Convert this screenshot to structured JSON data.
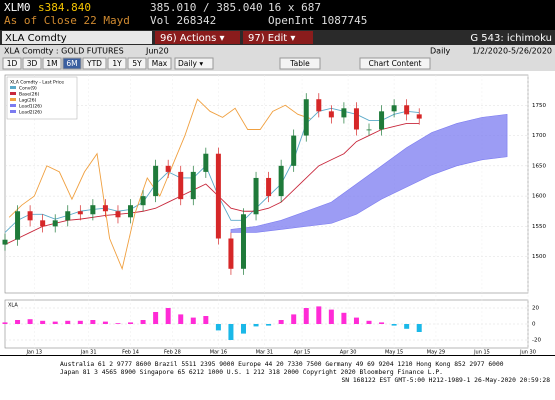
{
  "header": {
    "ticker": "XLM0",
    "last": "s384.840",
    "bidask": "385.010 / 385.040",
    "size": "16 x 687",
    "asof": "As of Close 22 Mayd",
    "vol": "Vol 268342",
    "openint": "OpenInt 1087745"
  },
  "toolbar": {
    "security": "XLA Comdty",
    "actions": "96) Actions ▾",
    "edit": "97) Edit ▾",
    "function": "G 543: ichimoku"
  },
  "info": {
    "name": "XLA Comdty : GOLD FUTURES",
    "contract": "Jun20",
    "period": "Daily",
    "range": "1/2/2020-5/26/2020"
  },
  "buttons": {
    "ranges": [
      "1D",
      "3D",
      "1M",
      "6M",
      "YTD",
      "1Y",
      "5Y",
      "Max"
    ],
    "selected": "6M",
    "period_menu": "Daily ▾",
    "table": "Table",
    "content": "Chart Content"
  },
  "chart_data": {
    "type": "candlestick",
    "legend_title": "XLA Comdty - Last Price",
    "x": [
      0,
      3,
      6,
      9,
      12,
      15,
      18,
      21,
      24,
      27,
      30,
      33,
      36,
      39,
      42,
      45,
      48,
      51,
      54,
      57,
      60,
      63,
      66,
      69,
      72,
      75,
      78,
      81,
      84,
      87,
      90,
      93,
      96,
      99
    ],
    "open": [
      1520,
      1528,
      1575,
      1560,
      1550,
      1560,
      1575,
      1570,
      1585,
      1575,
      1565,
      1585,
      1600,
      1650,
      1640,
      1595,
      1640,
      1670,
      1530,
      1480,
      1570,
      1630,
      1600,
      1650,
      1700,
      1760,
      1740,
      1730,
      1745,
      1710,
      1710,
      1740,
      1750,
      1735
    ],
    "high": [
      1538,
      1585,
      1585,
      1570,
      1570,
      1585,
      1585,
      1595,
      1595,
      1585,
      1595,
      1610,
      1660,
      1660,
      1650,
      1650,
      1680,
      1680,
      1540,
      1580,
      1640,
      1640,
      1660,
      1710,
      1770,
      1770,
      1750,
      1755,
      1755,
      1720,
      1750,
      1760,
      1760,
      1745
    ],
    "low": [
      1510,
      1518,
      1550,
      1540,
      1540,
      1550,
      1560,
      1560,
      1565,
      1555,
      1555,
      1575,
      1590,
      1630,
      1585,
      1585,
      1630,
      1520,
      1470,
      1470,
      1560,
      1590,
      1590,
      1640,
      1690,
      1730,
      1720,
      1720,
      1700,
      1700,
      1700,
      1730,
      1725,
      1718
    ],
    "close": [
      1528,
      1575,
      1560,
      1550,
      1560,
      1575,
      1570,
      1585,
      1575,
      1565,
      1585,
      1600,
      1650,
      1640,
      1595,
      1640,
      1670,
      1530,
      1480,
      1570,
      1630,
      1600,
      1650,
      1700,
      1760,
      1740,
      1730,
      1745,
      1710,
      1710,
      1740,
      1750,
      1735,
      1728
    ],
    "up_color": "#1f7a3a",
    "down_color": "#d62728",
    "series": [
      {
        "name": "Conv(9)",
        "color": "#5aa9c8",
        "x": [
          0,
          3,
          6,
          9,
          12,
          15,
          18,
          21,
          24,
          27,
          30,
          33,
          36,
          39,
          42,
          45,
          48,
          51,
          54,
          57,
          60,
          63,
          66,
          69,
          72,
          75,
          78,
          81,
          84,
          87,
          90,
          93,
          96,
          99
        ],
        "values": [
          1540,
          1560,
          1570,
          1570,
          1562,
          1568,
          1575,
          1578,
          1580,
          1575,
          1578,
          1590,
          1620,
          1640,
          1630,
          1630,
          1650,
          1600,
          1560,
          1560,
          1580,
          1600,
          1620,
          1660,
          1720,
          1740,
          1745,
          1740,
          1735,
          1725,
          1725,
          1735,
          1740,
          1738
        ]
      },
      {
        "name": "Base(26)",
        "color": "#c8283c",
        "x": [
          0,
          3,
          6,
          9,
          12,
          15,
          18,
          21,
          24,
          27,
          30,
          33,
          36,
          39,
          42,
          45,
          48,
          51,
          54,
          57,
          60,
          63,
          66,
          69,
          72,
          75,
          78,
          81,
          84,
          87,
          90,
          93,
          96,
          99
        ],
        "values": [
          1520,
          1530,
          1540,
          1550,
          1555,
          1560,
          1562,
          1565,
          1568,
          1570,
          1572,
          1575,
          1580,
          1590,
          1600,
          1610,
          1620,
          1600,
          1580,
          1575,
          1575,
          1580,
          1590,
          1610,
          1630,
          1650,
          1660,
          1670,
          1690,
          1700,
          1710,
          1715,
          1720,
          1720
        ]
      },
      {
        "name": "Lag(26)",
        "color": "#f0a040",
        "x": [
          1,
          4,
          7,
          10,
          13,
          16,
          19,
          22,
          25,
          28,
          31,
          34,
          37,
          40,
          43,
          46,
          49,
          52,
          55,
          58,
          61,
          64,
          67,
          70,
          73
        ],
        "values": [
          1565,
          1585,
          1600,
          1650,
          1640,
          1595,
          1640,
          1670,
          1530,
          1480,
          1570,
          1630,
          1600,
          1650,
          1700,
          1760,
          1740,
          1730,
          1745,
          1710,
          1710,
          1740,
          1750,
          1735,
          1728
        ]
      }
    ],
    "cloud": {
      "color": "#7b7bf0",
      "x": [
        54,
        60,
        66,
        72,
        78,
        84,
        90,
        96,
        102,
        108,
        114,
        120
      ],
      "names": [
        "Lead1(26)",
        "Lead2(26)"
      ],
      "span_a": [
        1545,
        1550,
        1560,
        1575,
        1590,
        1620,
        1650,
        1680,
        1705,
        1720,
        1730,
        1735
      ],
      "span_b": [
        1540,
        1540,
        1545,
        1550,
        1555,
        1570,
        1595,
        1615,
        1635,
        1650,
        1660,
        1665
      ]
    },
    "xlim": [
      0,
      125
    ],
    "xticks": [
      {
        "value": 7,
        "label": "Jan 13"
      },
      {
        "value": 20,
        "label": "Jan 31"
      },
      {
        "value": 30,
        "label": "Feb 14"
      },
      {
        "value": 40,
        "label": "Feb 28"
      },
      {
        "value": 51,
        "label": "Mar 16"
      },
      {
        "value": 62,
        "label": "Mar 31"
      },
      {
        "value": 71,
        "label": "Apr 15"
      },
      {
        "value": 82,
        "label": "Apr 30"
      },
      {
        "value": 93,
        "label": "May 15"
      },
      {
        "value": 103,
        "label": "May 29"
      },
      {
        "value": 114,
        "label": "Jun 15"
      },
      {
        "value": 125,
        "label": "Jun 30"
      }
    ],
    "ylim": [
      1440,
      1800
    ],
    "yticks": [
      1500,
      1550,
      1600,
      1650,
      1700,
      1750
    ],
    "grid": true,
    "macd": {
      "name": "XLA",
      "pos_color": "#ff2bd6",
      "neg_color": "#1ab8e8",
      "values": [
        2,
        5,
        6,
        4,
        3,
        4,
        4,
        5,
        3,
        1,
        2,
        5,
        15,
        20,
        12,
        8,
        10,
        -8,
        -20,
        -12,
        -3,
        -2,
        5,
        12,
        20,
        22,
        18,
        14,
        8,
        4,
        2,
        -2,
        -6,
        -10
      ],
      "ylim": [
        -30,
        30
      ],
      "yticks": [
        -20,
        0,
        20
      ]
    }
  },
  "footer": [
    "Australia 61 2 9777 8600 Brazil 5511 2395 9000 Europe 44 20 7330 7500 Germany 49 69 9204 1210 Hong Kong 852 2977 6000",
    "Japan 81 3 4565 8900    Singapore 65 6212 1000    U.S. 1 212 318 2000    Copyright 2020 Bloomberg Finance L.P.",
    "SN 168122 EST  GMT-5:00 H212-1989-1 26-May-2020 20:59:28"
  ]
}
